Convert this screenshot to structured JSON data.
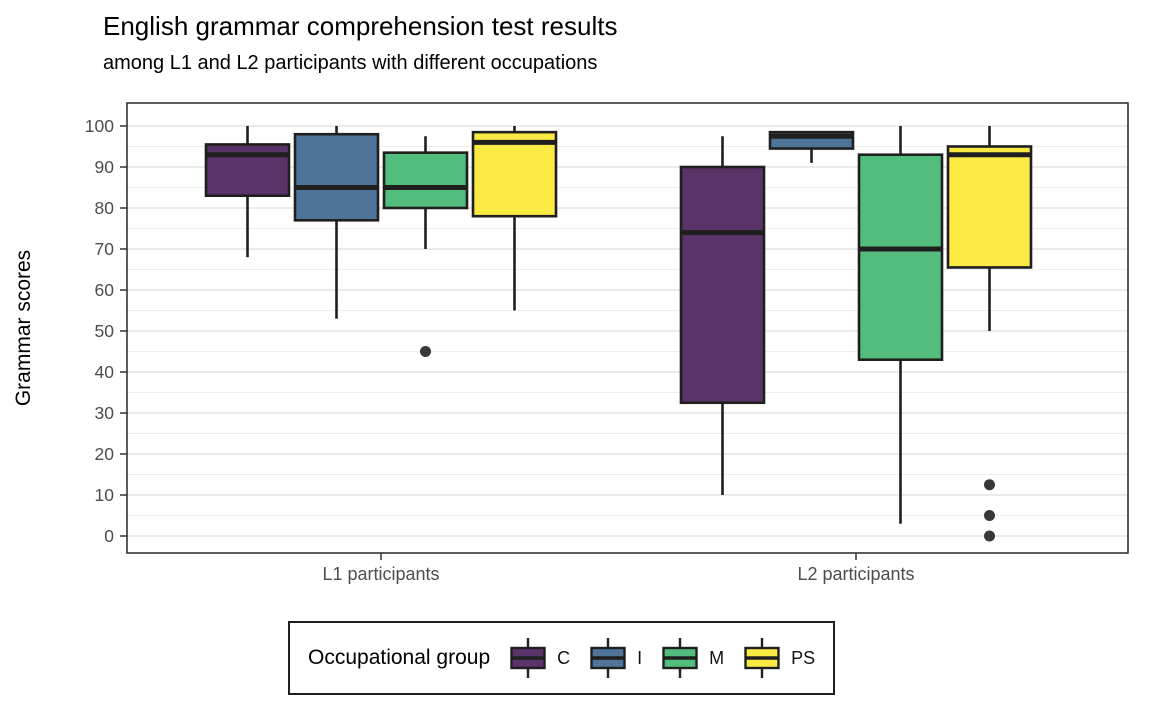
{
  "legend": {
    "title": "Occupational group"
  },
  "colors": {
    "box_border": "#1f1f1f",
    "panel_border": "#333333",
    "grid_major": "#dddddd",
    "grid_minor": "#eeeeee",
    "axis_text": "#4d4d4d",
    "outlier": "#383838",
    "background": "#ffffff"
  },
  "chart_data": {
    "type": "boxplot",
    "title": "English grammar comprehension test results",
    "subtitle": "among L1 and L2 participants with different occupations",
    "ylabel": "Grammar scores",
    "xlabel": "",
    "categories": [
      "L1 participants",
      "L2 participants"
    ],
    "ylim": [
      0,
      100
    ],
    "yticks_major": [
      0,
      10,
      20,
      30,
      40,
      50,
      60,
      70,
      80,
      90,
      100
    ],
    "yticks_minor": [
      5,
      15,
      25,
      35,
      45,
      55,
      65,
      75,
      85,
      95
    ],
    "grid": "horizontal major+minor",
    "legend_position": "bottom",
    "legend_title": "Occupational group",
    "series": [
      {
        "name": "C",
        "fill": "#5a3369",
        "boxes": [
          {
            "category": "L1 participants",
            "min": 68,
            "q1": 83,
            "median": 93,
            "q3": 95.5,
            "max": 100,
            "outliers": []
          },
          {
            "category": "L2 participants",
            "min": 10,
            "q1": 32.5,
            "median": 74,
            "q3": 90,
            "max": 97.5,
            "outliers": []
          }
        ]
      },
      {
        "name": "I",
        "fill": "#4f7499",
        "boxes": [
          {
            "category": "L1 participants",
            "min": 53,
            "q1": 77,
            "median": 85,
            "q3": 98,
            "max": 100,
            "outliers": []
          },
          {
            "category": "L2 participants",
            "min": 91,
            "q1": 94.5,
            "median": 97.5,
            "q3": 98.5,
            "max": 98.5,
            "outliers": []
          }
        ]
      },
      {
        "name": "M",
        "fill": "#53bd7e",
        "boxes": [
          {
            "category": "L1 participants",
            "min": 70,
            "q1": 80,
            "median": 85,
            "q3": 93.5,
            "max": 97.5,
            "outliers": [
              45
            ]
          },
          {
            "category": "L2 participants",
            "min": 3,
            "q1": 43,
            "median": 70,
            "q3": 93,
            "max": 100,
            "outliers": []
          }
        ]
      },
      {
        "name": "PS",
        "fill": "#fbe944",
        "boxes": [
          {
            "category": "L1 participants",
            "min": 55,
            "q1": 78,
            "median": 96,
            "q3": 98.5,
            "max": 100,
            "outliers": []
          },
          {
            "category": "L2 participants",
            "min": 50,
            "q1": 65.5,
            "median": 93,
            "q3": 95,
            "max": 100,
            "outliers": [
              12.5,
              5,
              0
            ]
          }
        ]
      }
    ]
  }
}
